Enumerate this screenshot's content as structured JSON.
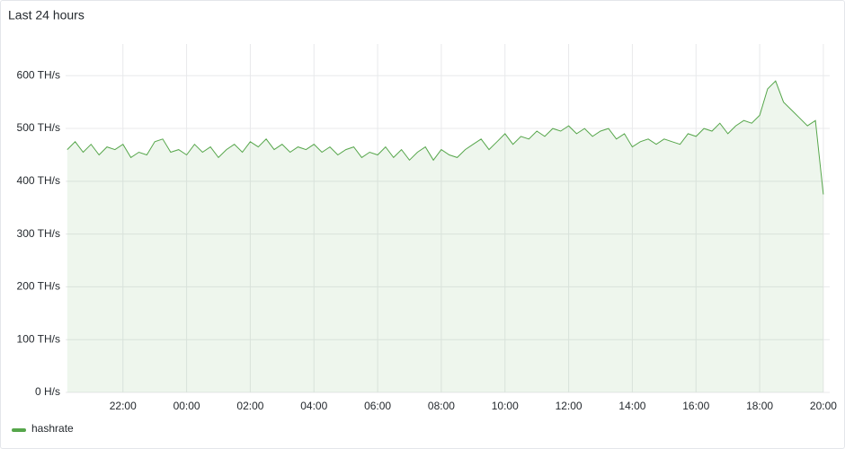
{
  "chart_data": {
    "type": "area",
    "title": "Last 24 hours",
    "x": [
      "20:15",
      "20:30",
      "20:45",
      "21:00",
      "21:15",
      "21:30",
      "21:45",
      "22:00",
      "22:15",
      "22:30",
      "22:45",
      "23:00",
      "23:15",
      "23:30",
      "23:45",
      "00:00",
      "00:15",
      "00:30",
      "00:45",
      "01:00",
      "01:15",
      "01:30",
      "01:45",
      "02:00",
      "02:15",
      "02:30",
      "02:45",
      "03:00",
      "03:15",
      "03:30",
      "03:45",
      "04:00",
      "04:15",
      "04:30",
      "04:45",
      "05:00",
      "05:15",
      "05:30",
      "05:45",
      "06:00",
      "06:15",
      "06:30",
      "06:45",
      "07:00",
      "07:15",
      "07:30",
      "07:45",
      "08:00",
      "08:15",
      "08:30",
      "08:45",
      "09:00",
      "09:15",
      "09:30",
      "09:45",
      "10:00",
      "10:15",
      "10:30",
      "10:45",
      "11:00",
      "11:15",
      "11:30",
      "11:45",
      "12:00",
      "12:15",
      "12:30",
      "12:45",
      "13:00",
      "13:15",
      "13:30",
      "13:45",
      "14:00",
      "14:15",
      "14:30",
      "14:45",
      "15:00",
      "15:15",
      "15:30",
      "15:45",
      "16:00",
      "16:15",
      "16:30",
      "16:45",
      "17:00",
      "17:15",
      "17:30",
      "17:45",
      "18:00",
      "18:15",
      "18:30",
      "18:45",
      "19:00",
      "19:15",
      "19:30",
      "19:45",
      "20:00"
    ],
    "series": [
      {
        "name": "hashrate",
        "color": "#56a64b",
        "values": [
          460,
          475,
          455,
          470,
          450,
          465,
          460,
          470,
          445,
          455,
          450,
          475,
          480,
          455,
          460,
          450,
          470,
          455,
          465,
          445,
          460,
          470,
          455,
          475,
          465,
          480,
          460,
          470,
          455,
          465,
          460,
          470,
          455,
          465,
          450,
          460,
          465,
          445,
          455,
          450,
          465,
          445,
          460,
          440,
          455,
          465,
          440,
          460,
          450,
          445,
          460,
          470,
          480,
          460,
          475,
          490,
          470,
          485,
          480,
          495,
          485,
          500,
          495,
          505,
          490,
          500,
          485,
          495,
          500,
          480,
          490,
          465,
          475,
          480,
          470,
          480,
          475,
          470,
          490,
          485,
          500,
          495,
          510,
          490,
          505,
          515,
          510,
          525,
          575,
          590,
          550,
          535,
          520,
          505,
          515,
          375
        ]
      }
    ],
    "xticks": [
      "22:00",
      "00:00",
      "02:00",
      "04:00",
      "06:00",
      "08:00",
      "10:00",
      "12:00",
      "14:00",
      "16:00",
      "18:00",
      "20:00"
    ],
    "ylim": [
      0,
      660
    ],
    "yticks": [
      {
        "value": 0,
        "label": "0 H/s"
      },
      {
        "value": 100,
        "label": "100 TH/s"
      },
      {
        "value": 200,
        "label": "200 TH/s"
      },
      {
        "value": 300,
        "label": "300 TH/s"
      },
      {
        "value": 400,
        "label": "400 TH/s"
      },
      {
        "value": 500,
        "label": "500 TH/s"
      },
      {
        "value": 600,
        "label": "600 TH/s"
      }
    ],
    "grid": true,
    "legend": "bottom-left"
  }
}
